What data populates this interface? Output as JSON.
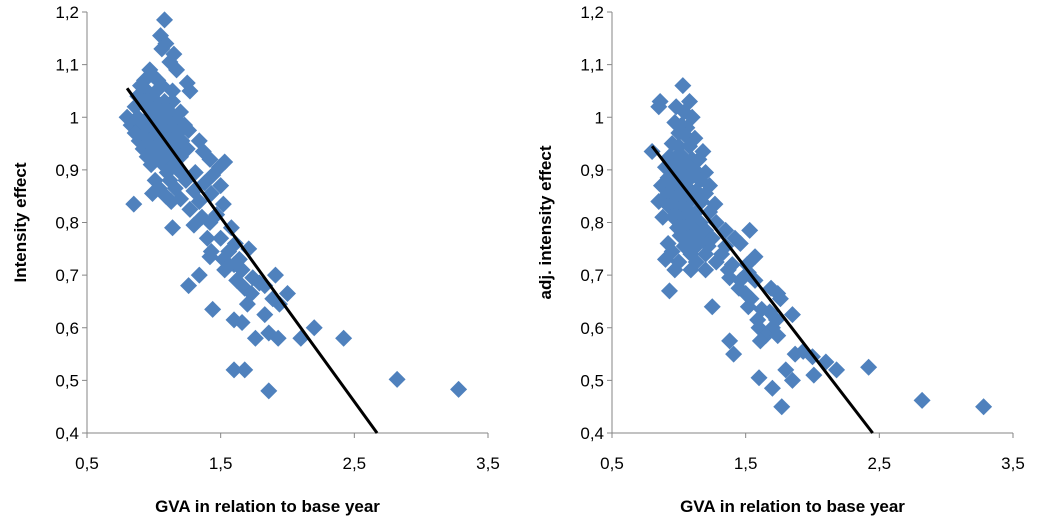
{
  "chart_data": [
    {
      "type": "scatter",
      "title": "",
      "xlabel": "GVA in relation to base year",
      "ylabel": "Intensity effect",
      "xlim": [
        0.5,
        3.5
      ],
      "ylim": [
        0.4,
        1.2
      ],
      "xticks": [
        "0,5",
        "1,5",
        "2,5",
        "3,5"
      ],
      "yticks": [
        "0,4",
        "0,5",
        "0,6",
        "0,7",
        "0,8",
        "0,9",
        "1",
        "1,1",
        "1,2"
      ],
      "marker_color": "#4F81BD",
      "line_color": "#000000",
      "trendline": [
        [
          0.8,
          1.055
        ],
        [
          2.67,
          0.4
        ]
      ],
      "points": [
        [
          1.08,
          1.185
        ],
        [
          1.05,
          1.155
        ],
        [
          1.09,
          1.14
        ],
        [
          1.15,
          1.12
        ],
        [
          1.06,
          1.13
        ],
        [
          1.12,
          1.105
        ],
        [
          1.17,
          1.09
        ],
        [
          0.97,
          1.09
        ],
        [
          0.99,
          1.08
        ],
        [
          0.93,
          1.07
        ],
        [
          1.03,
          1.07
        ],
        [
          1.25,
          1.065
        ],
        [
          1.27,
          1.05
        ],
        [
          0.9,
          1.06
        ],
        [
          0.95,
          1.05
        ],
        [
          1.0,
          1.045
        ],
        [
          1.06,
          1.06
        ],
        [
          1.14,
          1.05
        ],
        [
          0.88,
          1.04
        ],
        [
          0.92,
          1.03
        ],
        [
          0.97,
          1.03
        ],
        [
          1.02,
          1.03
        ],
        [
          1.08,
          1.03
        ],
        [
          1.14,
          1.03
        ],
        [
          0.86,
          1.02
        ],
        [
          0.94,
          1.02
        ],
        [
          1.0,
          1.015
        ],
        [
          1.06,
          1.01
        ],
        [
          1.12,
          1.01
        ],
        [
          1.2,
          1.01
        ],
        [
          0.8,
          1.0
        ],
        [
          0.88,
          1.0
        ],
        [
          0.96,
          1.0
        ],
        [
          1.03,
          1.0
        ],
        [
          1.1,
          1.0
        ],
        [
          1.17,
          0.995
        ],
        [
          0.83,
          0.985
        ],
        [
          0.91,
          0.985
        ],
        [
          0.99,
          0.985
        ],
        [
          1.07,
          0.985
        ],
        [
          1.14,
          0.985
        ],
        [
          1.23,
          0.985
        ],
        [
          0.86,
          0.97
        ],
        [
          0.94,
          0.97
        ],
        [
          1.02,
          0.97
        ],
        [
          1.1,
          0.97
        ],
        [
          1.18,
          0.97
        ],
        [
          1.26,
          0.975
        ],
        [
          0.89,
          0.955
        ],
        [
          0.97,
          0.955
        ],
        [
          1.05,
          0.955
        ],
        [
          1.13,
          0.955
        ],
        [
          1.21,
          0.955
        ],
        [
          1.34,
          0.955
        ],
        [
          0.92,
          0.94
        ],
        [
          1.0,
          0.94
        ],
        [
          1.08,
          0.94
        ],
        [
          1.16,
          0.94
        ],
        [
          1.25,
          0.94
        ],
        [
          0.95,
          0.925
        ],
        [
          1.03,
          0.925
        ],
        [
          1.11,
          0.925
        ],
        [
          1.2,
          0.925
        ],
        [
          1.37,
          0.935
        ],
        [
          1.42,
          0.92
        ],
        [
          0.98,
          0.91
        ],
        [
          1.07,
          0.91
        ],
        [
          1.15,
          0.91
        ],
        [
          1.53,
          0.915
        ],
        [
          1.49,
          0.905
        ],
        [
          1.1,
          0.895
        ],
        [
          1.2,
          0.895
        ],
        [
          1.31,
          0.895
        ],
        [
          1.44,
          0.89
        ],
        [
          1.01,
          0.88
        ],
        [
          1.12,
          0.88
        ],
        [
          1.24,
          0.88
        ],
        [
          1.38,
          0.875
        ],
        [
          1.5,
          0.87
        ],
        [
          1.04,
          0.865
        ],
        [
          1.16,
          0.865
        ],
        [
          1.3,
          0.86
        ],
        [
          1.43,
          0.855
        ],
        [
          0.99,
          0.855
        ],
        [
          1.09,
          0.85
        ],
        [
          1.2,
          0.845
        ],
        [
          1.34,
          0.84
        ],
        [
          0.85,
          0.835
        ],
        [
          1.13,
          0.84
        ],
        [
          1.27,
          0.825
        ],
        [
          1.52,
          0.835
        ],
        [
          1.36,
          0.81
        ],
        [
          1.47,
          0.815
        ],
        [
          1.3,
          0.795
        ],
        [
          1.42,
          0.8
        ],
        [
          1.58,
          0.79
        ],
        [
          1.14,
          0.79
        ],
        [
          1.4,
          0.77
        ],
        [
          1.5,
          0.77
        ],
        [
          1.61,
          0.76
        ],
        [
          1.43,
          0.745
        ],
        [
          1.56,
          0.745
        ],
        [
          1.71,
          0.75
        ],
        [
          1.52,
          0.73
        ],
        [
          1.64,
          0.73
        ],
        [
          1.42,
          0.735
        ],
        [
          1.6,
          0.72
        ],
        [
          1.53,
          0.71
        ],
        [
          1.66,
          0.71
        ],
        [
          1.34,
          0.7
        ],
        [
          1.74,
          0.695
        ],
        [
          1.91,
          0.7
        ],
        [
          1.62,
          0.69
        ],
        [
          1.79,
          0.685
        ],
        [
          1.26,
          0.68
        ],
        [
          1.68,
          0.675
        ],
        [
          1.83,
          0.68
        ],
        [
          1.73,
          0.665
        ],
        [
          2.0,
          0.665
        ],
        [
          1.89,
          0.655
        ],
        [
          1.94,
          0.645
        ],
        [
          1.7,
          0.645
        ],
        [
          1.44,
          0.635
        ],
        [
          1.83,
          0.625
        ],
        [
          1.6,
          0.615
        ],
        [
          1.66,
          0.61
        ],
        [
          2.2,
          0.6
        ],
        [
          1.86,
          0.59
        ],
        [
          1.93,
          0.58
        ],
        [
          1.76,
          0.58
        ],
        [
          2.1,
          0.58
        ],
        [
          2.42,
          0.58
        ],
        [
          1.6,
          0.52
        ],
        [
          1.68,
          0.52
        ],
        [
          1.86,
          0.48
        ],
        [
          2.82,
          0.502
        ],
        [
          3.28,
          0.483
        ]
      ]
    },
    {
      "type": "scatter",
      "title": "",
      "xlabel": "GVA in relation to base year",
      "ylabel": "adj. intensity effect",
      "xlim": [
        0.5,
        3.5
      ],
      "ylim": [
        0.4,
        1.2
      ],
      "xticks": [
        "0,5",
        "1,5",
        "2,5",
        "3,5"
      ],
      "yticks": [
        "0,4",
        "0,5",
        "0,6",
        "0,7",
        "0,8",
        "0,9",
        "1",
        "1,1",
        "1,2"
      ],
      "marker_color": "#4F81BD",
      "line_color": "#000000",
      "trendline": [
        [
          0.8,
          0.945
        ],
        [
          2.45,
          0.4
        ]
      ],
      "points": [
        [
          1.03,
          1.06
        ],
        [
          0.86,
          1.03
        ],
        [
          0.85,
          1.02
        ],
        [
          1.08,
          1.03
        ],
        [
          0.98,
          1.02
        ],
        [
          1.04,
          1.01
        ],
        [
          1.1,
          1.0
        ],
        [
          0.97,
          0.99
        ],
        [
          1.02,
          0.985
        ],
        [
          1.06,
          0.98
        ],
        [
          1.0,
          0.97
        ],
        [
          1.05,
          0.965
        ],
        [
          1.12,
          0.96
        ],
        [
          0.8,
          0.935
        ],
        [
          0.95,
          0.95
        ],
        [
          1.0,
          0.945
        ],
        [
          1.08,
          0.945
        ],
        [
          1.18,
          0.935
        ],
        [
          0.93,
          0.925
        ],
        [
          0.98,
          0.925
        ],
        [
          1.03,
          0.925
        ],
        [
          1.1,
          0.92
        ],
        [
          1.15,
          0.92
        ],
        [
          0.9,
          0.905
        ],
        [
          0.96,
          0.905
        ],
        [
          1.01,
          0.905
        ],
        [
          1.06,
          0.905
        ],
        [
          1.12,
          0.9
        ],
        [
          1.2,
          0.895
        ],
        [
          0.92,
          0.885
        ],
        [
          0.99,
          0.885
        ],
        [
          1.04,
          0.885
        ],
        [
          1.09,
          0.885
        ],
        [
          1.16,
          0.88
        ],
        [
          1.23,
          0.87
        ],
        [
          0.87,
          0.87
        ],
        [
          0.95,
          0.865
        ],
        [
          1.01,
          0.865
        ],
        [
          1.07,
          0.865
        ],
        [
          1.13,
          0.86
        ],
        [
          1.2,
          0.855
        ],
        [
          0.9,
          0.85
        ],
        [
          0.97,
          0.845
        ],
        [
          1.04,
          0.845
        ],
        [
          1.1,
          0.845
        ],
        [
          1.17,
          0.84
        ],
        [
          1.27,
          0.835
        ],
        [
          0.85,
          0.84
        ],
        [
          0.93,
          0.83
        ],
        [
          1.0,
          0.825
        ],
        [
          1.06,
          0.825
        ],
        [
          1.13,
          0.82
        ],
        [
          1.23,
          0.82
        ],
        [
          0.88,
          0.81
        ],
        [
          0.96,
          0.81
        ],
        [
          1.02,
          0.805
        ],
        [
          1.09,
          0.805
        ],
        [
          1.16,
          0.8
        ],
        [
          1.28,
          0.8
        ],
        [
          0.99,
          0.79
        ],
        [
          1.05,
          0.79
        ],
        [
          1.12,
          0.785
        ],
        [
          1.2,
          0.785
        ],
        [
          1.35,
          0.785
        ],
        [
          1.53,
          0.785
        ],
        [
          1.01,
          0.775
        ],
        [
          1.08,
          0.77
        ],
        [
          1.16,
          0.77
        ],
        [
          1.25,
          0.77
        ],
        [
          1.42,
          0.77
        ],
        [
          0.92,
          0.76
        ],
        [
          1.04,
          0.755
        ],
        [
          1.13,
          0.755
        ],
        [
          1.22,
          0.755
        ],
        [
          1.35,
          0.755
        ],
        [
          1.46,
          0.76
        ],
        [
          0.95,
          0.745
        ],
        [
          1.09,
          0.74
        ],
        [
          1.2,
          0.74
        ],
        [
          1.32,
          0.74
        ],
        [
          1.57,
          0.735
        ],
        [
          0.9,
          0.73
        ],
        [
          1.0,
          0.725
        ],
        [
          1.13,
          0.725
        ],
        [
          1.28,
          0.725
        ],
        [
          1.4,
          0.72
        ],
        [
          1.51,
          0.72
        ],
        [
          0.97,
          0.71
        ],
        [
          1.09,
          0.71
        ],
        [
          1.2,
          0.71
        ],
        [
          1.37,
          0.71
        ],
        [
          1.52,
          0.705
        ],
        [
          1.38,
          0.695
        ],
        [
          1.46,
          0.69
        ],
        [
          1.57,
          0.69
        ],
        [
          1.45,
          0.675
        ],
        [
          1.69,
          0.675
        ],
        [
          0.93,
          0.67
        ],
        [
          1.5,
          0.665
        ],
        [
          1.74,
          0.665
        ],
        [
          1.54,
          0.655
        ],
        [
          1.76,
          0.655
        ],
        [
          1.25,
          0.64
        ],
        [
          1.52,
          0.64
        ],
        [
          1.62,
          0.635
        ],
        [
          1.68,
          0.63
        ],
        [
          1.85,
          0.625
        ],
        [
          1.59,
          0.615
        ],
        [
          1.73,
          0.615
        ],
        [
          1.6,
          0.6
        ],
        [
          1.7,
          0.6
        ],
        [
          1.65,
          0.585
        ],
        [
          1.74,
          0.585
        ],
        [
          1.61,
          0.575
        ],
        [
          1.38,
          0.575
        ],
        [
          1.93,
          0.555
        ],
        [
          1.87,
          0.55
        ],
        [
          1.41,
          0.55
        ],
        [
          2.0,
          0.545
        ],
        [
          2.1,
          0.535
        ],
        [
          2.18,
          0.52
        ],
        [
          1.8,
          0.52
        ],
        [
          2.01,
          0.51
        ],
        [
          1.6,
          0.505
        ],
        [
          1.85,
          0.5
        ],
        [
          1.7,
          0.485
        ],
        [
          1.77,
          0.45
        ],
        [
          2.42,
          0.525
        ],
        [
          2.82,
          0.462
        ],
        [
          3.28,
          0.45
        ]
      ]
    }
  ]
}
